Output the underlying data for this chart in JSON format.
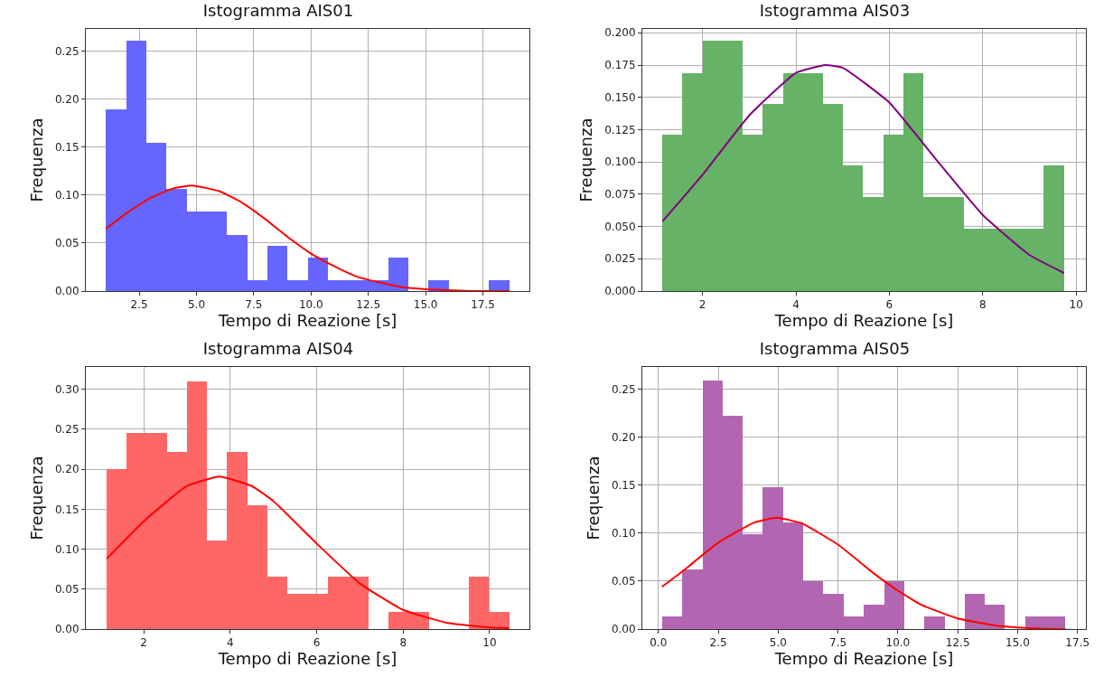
{
  "chart_data": [
    {
      "type": "histogram",
      "title": "Istogramma AIS01",
      "xlabel": "Tempo di Reazione [s]",
      "ylabel": "Frequenza",
      "grid": true,
      "bins": [
        1.05,
        1.93,
        2.81,
        3.69,
        4.57,
        5.45,
        6.33,
        7.21,
        8.09,
        8.97,
        9.85,
        10.73,
        11.61,
        12.49,
        13.37,
        14.25,
        15.13,
        16.01,
        16.89,
        17.77,
        18.65
      ],
      "xlim": [
        0.17,
        19.53
      ],
      "xticks": [
        2.5,
        {
          "value": 5,
          "label": "5.0"
        },
        7.5,
        {
          "value": 10,
          "label": "10.0"
        },
        12.5,
        {
          "value": 15,
          "label": "15.0"
        },
        17.5
      ],
      "ylim": [
        0,
        0.273
      ],
      "yticks": [
        {
          "value": 0,
          "label": "0.00"
        },
        0.05,
        {
          "value": 0.1,
          "label": "0.10"
        },
        0.15,
        {
          "value": 0.2,
          "label": "0.20"
        },
        0.25
      ],
      "series": [
        {
          "color": "#6666ff",
          "values": [
            0.189,
            0.261,
            0.154,
            0.106,
            0.083,
            0.083,
            0.058,
            0.011,
            0.047,
            0.011,
            0.035,
            0.011,
            0.011,
            0.011,
            0.035,
            0,
            0.011,
            0,
            0,
            0.011
          ]
        },
        {
          "type": "line",
          "color": "#ff0000",
          "x": [
            1.05,
            2,
            3,
            4,
            4.8,
            6,
            7,
            8,
            9,
            10,
            11,
            12,
            13,
            14,
            15,
            16,
            17,
            18.65
          ],
          "values": [
            0.065,
            0.082,
            0.097,
            0.107,
            0.11,
            0.104,
            0.092,
            0.075,
            0.056,
            0.039,
            0.026,
            0.015,
            0.009,
            0.004,
            0.002,
            0.001,
            0,
            0
          ]
        }
      ]
    },
    {
      "type": "histogram",
      "title": "Istogramma AIS03",
      "xlabel": "Tempo di Reazione [s]",
      "ylabel": "Frequenza",
      "grid": true,
      "bins": [
        1.14,
        1.57,
        2.0,
        2.43,
        2.86,
        3.29,
        3.72,
        4.15,
        4.58,
        5.01,
        5.44,
        5.87,
        6.3,
        6.73,
        7.16,
        7.59,
        8.02,
        8.45,
        8.88,
        9.31,
        9.74
      ],
      "xlim": [
        0.71,
        10.21
      ],
      "xticks": [
        2,
        4,
        6,
        8,
        10
      ],
      "ylim": [
        0,
        0.203
      ],
      "yticks": [
        {
          "value": 0,
          "label": "0.000"
        },
        0.025,
        {
          "value": 0.05,
          "label": "0.050"
        },
        0.075,
        {
          "value": 0.1,
          "label": "0.100"
        },
        0.125,
        {
          "value": 0.15,
          "label": "0.150"
        },
        0.175,
        {
          "value": 0.2,
          "label": "0.200"
        }
      ],
      "series": [
        {
          "color": "#66b266",
          "values": [
            0.121,
            0.169,
            0.194,
            0.194,
            0.121,
            0.145,
            0.169,
            0.169,
            0.145,
            0.097,
            0.073,
            0.121,
            0.169,
            0.073,
            0.073,
            0.048,
            0.048,
            0.048,
            0.048,
            0.097
          ]
        },
        {
          "type": "line",
          "color": "#800080",
          "x": [
            1.14,
            2,
            3,
            4,
            4.63,
            5,
            6,
            7,
            8,
            9,
            9.74
          ],
          "values": [
            0.054,
            0.09,
            0.136,
            0.169,
            0.175,
            0.173,
            0.146,
            0.102,
            0.059,
            0.028,
            0.014
          ]
        }
      ]
    },
    {
      "type": "histogram",
      "title": "Istogramma AIS04",
      "xlabel": "Tempo di Reazione [s]",
      "ylabel": "Frequenza",
      "grid": true,
      "bins": [
        1.14,
        1.61,
        2.07,
        2.54,
        3.0,
        3.47,
        3.93,
        4.4,
        4.86,
        5.33,
        5.8,
        6.26,
        6.73,
        7.19,
        7.66,
        8.12,
        8.59,
        9.05,
        9.52,
        9.98,
        10.45
      ],
      "xlim": [
        0.66,
        10.92
      ],
      "xticks": [
        2,
        4,
        6,
        8,
        10
      ],
      "ylim": [
        0,
        0.328
      ],
      "yticks": [
        {
          "value": 0,
          "label": "0.00"
        },
        0.05,
        {
          "value": 0.1,
          "label": "0.10"
        },
        0.15,
        {
          "value": 0.2,
          "label": "0.20"
        },
        0.25,
        {
          "value": 0.3,
          "label": "0.30"
        }
      ],
      "series": [
        {
          "color": "#ff6666",
          "values": [
            0.2,
            0.245,
            0.245,
            0.222,
            0.31,
            0.111,
            0.222,
            0.155,
            0.066,
            0.044,
            0.044,
            0.066,
            0.066,
            0,
            0.022,
            0.022,
            0,
            0,
            0.066,
            0.022
          ]
        },
        {
          "type": "line",
          "color": "#ff0000",
          "x": [
            1.14,
            2,
            3,
            3.75,
            4.5,
            5,
            6,
            7,
            8,
            9,
            10,
            10.45
          ],
          "values": [
            0.088,
            0.135,
            0.179,
            0.191,
            0.179,
            0.16,
            0.107,
            0.057,
            0.024,
            0.008,
            0.002,
            0.001
          ]
        }
      ]
    },
    {
      "type": "histogram",
      "title": "Istogramma AIS05",
      "xlabel": "Tempo di Reazione [s]",
      "ylabel": "Frequenza",
      "grid": true,
      "bins": [
        0.15,
        0.99,
        1.84,
        2.68,
        3.52,
        4.36,
        5.21,
        6.05,
        6.89,
        7.73,
        8.58,
        9.42,
        10.26,
        11.1,
        11.95,
        12.79,
        13.63,
        14.47,
        15.32,
        16.16,
        17.0
      ],
      "xlim": [
        -0.67,
        17.85
      ],
      "xticks": [
        {
          "value": 0,
          "label": "0.0"
        },
        2.5,
        {
          "value": 5,
          "label": "5.0"
        },
        7.5,
        {
          "value": 10,
          "label": "10.0"
        },
        12.5,
        {
          "value": 15,
          "label": "15.0"
        },
        17.5
      ],
      "ylim": [
        0,
        0.273
      ],
      "yticks": [
        {
          "value": 0,
          "label": "0.00"
        },
        0.05,
        {
          "value": 0.1,
          "label": "0.10"
        },
        0.15,
        {
          "value": 0.2,
          "label": "0.20"
        },
        0.25
      ],
      "series": [
        {
          "color": "#b266b2",
          "values": [
            0.013,
            0.062,
            0.259,
            0.222,
            0.099,
            0.148,
            0.111,
            0.05,
            0.037,
            0.013,
            0.025,
            0.05,
            0,
            0.013,
            0,
            0.037,
            0.025,
            0,
            0.013,
            0.013
          ]
        },
        {
          "type": "line",
          "color": "#ff0000",
          "x": [
            0.15,
            1,
            2.5,
            4,
            4.95,
            6,
            7.5,
            9,
            10,
            11,
            12.5,
            14,
            15.5,
            17
          ],
          "values": [
            0.044,
            0.06,
            0.09,
            0.111,
            0.116,
            0.11,
            0.088,
            0.058,
            0.04,
            0.025,
            0.011,
            0.004,
            0.001,
            0
          ]
        }
      ]
    }
  ]
}
